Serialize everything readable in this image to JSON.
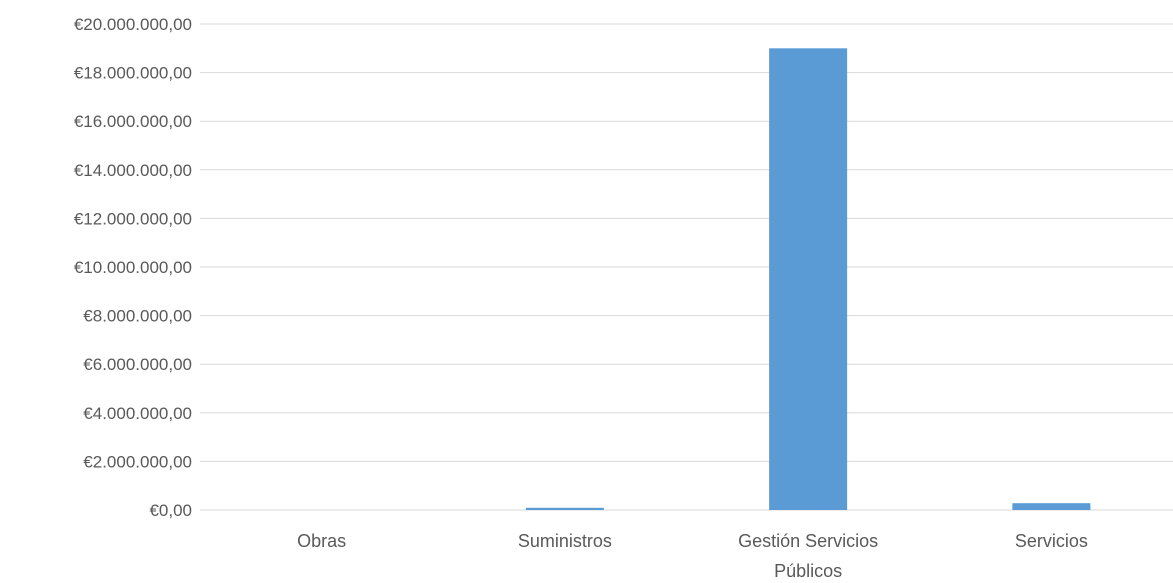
{
  "chart_data": {
    "type": "bar",
    "categories": [
      [
        "Obras"
      ],
      [
        "Suministros"
      ],
      [
        "Gestión Servicios",
        "Públicos"
      ],
      [
        "Servicios"
      ]
    ],
    "values": [
      0,
      90000,
      19000000,
      280000
    ],
    "ylim": [
      0,
      20000000
    ],
    "ytick_step": 2000000,
    "ytick_labels": [
      "€0,00",
      "€2.000.000,00",
      "€4.000.000,00",
      "€6.000.000,00",
      "€8.000.000,00",
      "€10.000.000,00",
      "€12.000.000,00",
      "€14.000.000,00",
      "€16.000.000,00",
      "€18.000.000,00",
      "€20.000.000,00"
    ],
    "bar_color": "#5b9bd5",
    "grid": true,
    "legend": "none",
    "title": "",
    "xlabel": "",
    "ylabel": ""
  }
}
